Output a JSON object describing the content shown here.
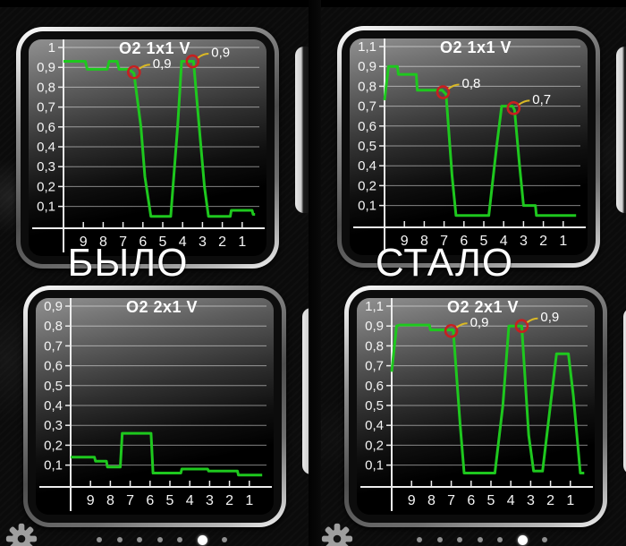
{
  "captions": {
    "was": "БЫЛО",
    "now": "СТАЛО"
  },
  "pager": {
    "dot_count": 7,
    "active_index": 5
  },
  "colors": {
    "line_green": "#1ec81e",
    "marker_red": "#c62020",
    "leader_yellow": "#d9b825",
    "grid": "rgba(255,255,255,0.5)",
    "axis": "#ededed",
    "label_text": "#f4f4f4",
    "dot_active": "#ffffff",
    "dot_inactive": "#8f8f8f"
  },
  "chart_data": [
    {
      "id": "o2-1x1-was",
      "group": "was",
      "type": "line",
      "title": "O2 1x1  V",
      "x_tick_labels": [
        "9",
        "8",
        "7",
        "6",
        "5",
        "4",
        "3",
        "2",
        "1"
      ],
      "x_range": [
        10,
        0
      ],
      "y_tick_labels": [
        "1",
        "0,9",
        "0,8",
        "0,7",
        "0,6",
        "0,4",
        "0,3",
        "0,2",
        "0,1"
      ],
      "y_tick_values": [
        1,
        0.9,
        0.8,
        0.7,
        0.6,
        0.4,
        0.3,
        0.2,
        0.1
      ],
      "points": [
        [
          10,
          0.93
        ],
        [
          8.9,
          0.93
        ],
        [
          8.8,
          0.89
        ],
        [
          7.8,
          0.89
        ],
        [
          7.7,
          0.93
        ],
        [
          7.3,
          0.93
        ],
        [
          7.2,
          0.89
        ],
        [
          6.7,
          0.89
        ],
        [
          6.45,
          0.87
        ],
        [
          6.1,
          0.6
        ],
        [
          5.9,
          0.25
        ],
        [
          5.6,
          0.05
        ],
        [
          4.6,
          0.05
        ],
        [
          4.25,
          0.6
        ],
        [
          4.05,
          0.93
        ],
        [
          3.45,
          0.93
        ],
        [
          3.1,
          0.45
        ],
        [
          2.9,
          0.2
        ],
        [
          2.7,
          0.05
        ],
        [
          1.6,
          0.05
        ],
        [
          1.55,
          0.08
        ],
        [
          0.5,
          0.08
        ],
        [
          0.45,
          0.06
        ],
        [
          0.35,
          0.06
        ]
      ],
      "annotations": [
        {
          "t": 6.45,
          "v": 0.875,
          "label": "0,9"
        },
        {
          "t": 3.5,
          "v": 0.93,
          "label": "0,9"
        }
      ]
    },
    {
      "id": "o2-1x1-now",
      "group": "now",
      "type": "line",
      "title": "O2 1x1  V",
      "x_tick_labels": [
        "9",
        "8",
        "7",
        "6",
        "5",
        "4",
        "3",
        "2",
        "1"
      ],
      "x_range": [
        10,
        0
      ],
      "y_tick_labels": [
        "1,1",
        "0,9",
        "0,8",
        "0,7",
        "0,6",
        "0,5",
        "0,4",
        "0,2",
        "0,1"
      ],
      "y_tick_values": [
        1.1,
        0.9,
        0.8,
        0.7,
        0.6,
        0.5,
        0.4,
        0.2,
        0.1
      ],
      "points": [
        [
          10,
          0.73
        ],
        [
          9.8,
          0.9
        ],
        [
          9.35,
          0.9
        ],
        [
          9.3,
          0.86
        ],
        [
          8.4,
          0.86
        ],
        [
          8.35,
          0.78
        ],
        [
          7.1,
          0.78
        ],
        [
          6.9,
          0.76
        ],
        [
          6.6,
          0.3
        ],
        [
          6.4,
          0.05
        ],
        [
          4.75,
          0.05
        ],
        [
          4.35,
          0.5
        ],
        [
          4.1,
          0.7
        ],
        [
          3.55,
          0.7
        ],
        [
          3.45,
          0.68
        ],
        [
          3.2,
          0.4
        ],
        [
          3.0,
          0.1
        ],
        [
          2.4,
          0.1
        ],
        [
          2.35,
          0.05
        ],
        [
          0.35,
          0.05
        ]
      ],
      "annotations": [
        {
          "t": 7.05,
          "v": 0.77,
          "label": "0,8"
        },
        {
          "t": 3.5,
          "v": 0.69,
          "label": "0,7"
        }
      ]
    },
    {
      "id": "o2-2x1-was",
      "group": "was",
      "type": "line",
      "title": "O2 2x1  V",
      "x_tick_labels": [
        "9",
        "8",
        "7",
        "6",
        "5",
        "4",
        "3",
        "2",
        "1"
      ],
      "x_range": [
        10,
        0
      ],
      "y_tick_labels": [
        "0,9",
        "0,8",
        "0,7",
        "0,6",
        "0,5",
        "0,4",
        "0,3",
        "0,2",
        "0,1"
      ],
      "y_tick_values": [
        0.9,
        0.8,
        0.7,
        0.6,
        0.5,
        0.4,
        0.3,
        0.2,
        0.1
      ],
      "points": [
        [
          10,
          0.14
        ],
        [
          8.8,
          0.14
        ],
        [
          8.75,
          0.12
        ],
        [
          8.2,
          0.12
        ],
        [
          8.15,
          0.09
        ],
        [
          7.5,
          0.09
        ],
        [
          7.4,
          0.26
        ],
        [
          5.95,
          0.26
        ],
        [
          5.85,
          0.06
        ],
        [
          4.45,
          0.06
        ],
        [
          4.4,
          0.08
        ],
        [
          3.1,
          0.08
        ],
        [
          3.05,
          0.07
        ],
        [
          1.6,
          0.07
        ],
        [
          1.55,
          0.05
        ],
        [
          0.35,
          0.05
        ]
      ],
      "annotations": []
    },
    {
      "id": "o2-2x1-now",
      "group": "now",
      "type": "line",
      "title": "O2 2x1  V",
      "x_tick_labels": [
        "9",
        "8",
        "7",
        "6",
        "5",
        "4",
        "3",
        "2",
        "1"
      ],
      "x_range": [
        10,
        0
      ],
      "y_tick_labels": [
        "1,1",
        "0,9",
        "0,8",
        "0,7",
        "0,6",
        "0,5",
        "0,4",
        "0,2",
        "0,1"
      ],
      "y_tick_values": [
        1.1,
        0.9,
        0.8,
        0.7,
        0.6,
        0.5,
        0.4,
        0.2,
        0.1
      ],
      "points": [
        [
          10,
          0.67
        ],
        [
          9.75,
          0.9
        ],
        [
          9.6,
          0.91
        ],
        [
          8.1,
          0.91
        ],
        [
          8.05,
          0.88
        ],
        [
          6.9,
          0.88
        ],
        [
          6.55,
          0.4
        ],
        [
          6.35,
          0.06
        ],
        [
          4.8,
          0.06
        ],
        [
          4.4,
          0.5
        ],
        [
          4.1,
          0.9
        ],
        [
          3.45,
          0.9
        ],
        [
          3.1,
          0.3
        ],
        [
          2.85,
          0.07
        ],
        [
          2.4,
          0.07
        ],
        [
          1.7,
          0.76
        ],
        [
          1.1,
          0.76
        ],
        [
          0.85,
          0.55
        ],
        [
          0.5,
          0.06
        ],
        [
          0.3,
          0.06
        ]
      ],
      "annotations": [
        {
          "t": 7.0,
          "v": 0.875,
          "label": "0,9"
        },
        {
          "t": 3.45,
          "v": 0.9,
          "label": "0,9"
        }
      ]
    }
  ]
}
